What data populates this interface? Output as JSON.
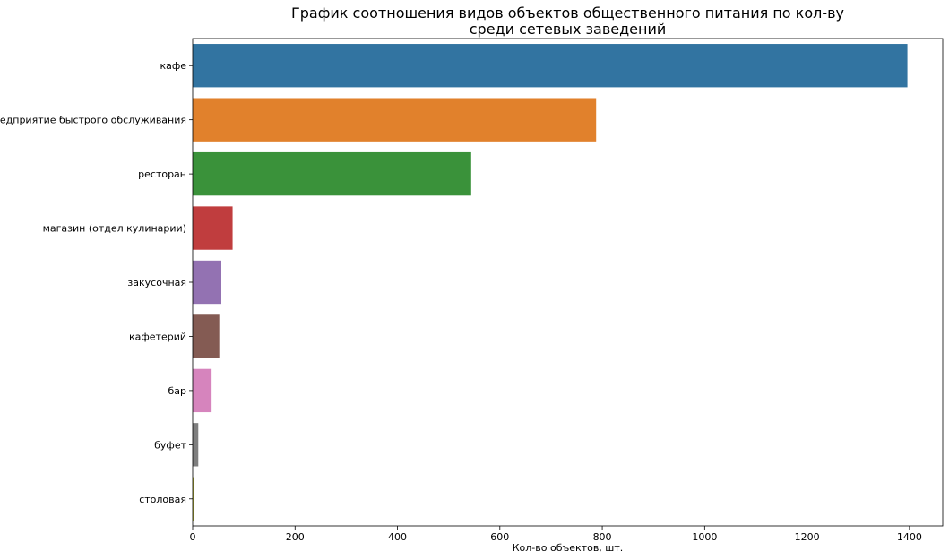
{
  "chart_data": {
    "type": "bar",
    "orientation": "horizontal",
    "title_line1": "График соотношения видов объектов общественного питания по кол-ву",
    "title_line2": "среди сетевых заведений",
    "xlabel": "Кол-во объектов, шт.",
    "ylabel": "",
    "xlim": [
      0,
      1465
    ],
    "xticks": [
      0,
      200,
      400,
      600,
      800,
      1000,
      1200,
      1400
    ],
    "grid": false,
    "categories": [
      "кафе",
      "предприятие быстрого обслуживания",
      "ресторан",
      "магазин (отдел кулинарии)",
      "закусочная",
      "кафетерий",
      "бар",
      "буфет",
      "столовая"
    ],
    "values": [
      1396,
      788,
      544,
      78,
      56,
      52,
      37,
      11,
      3
    ],
    "colors": [
      "#3274a1",
      "#e1812c",
      "#3a923a",
      "#c03d3e",
      "#9372b2",
      "#845b53",
      "#d684bd",
      "#7f7f7f",
      "#a9aa35"
    ]
  }
}
